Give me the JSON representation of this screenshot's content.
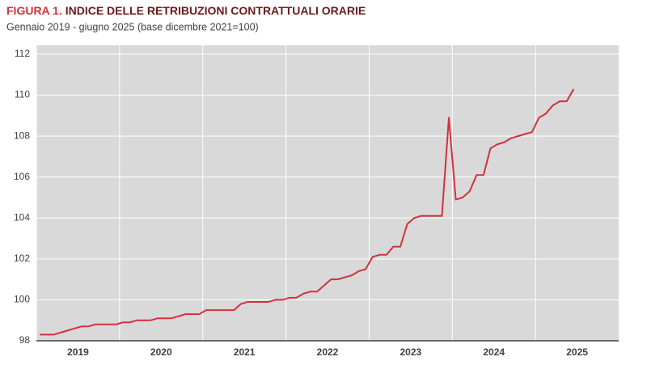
{
  "chart_data": {
    "type": "line",
    "figure_label": "FIGURA 1.",
    "title": "INDICE DELLE RETRIBUZIONI CONTRATTUALI ORARIE",
    "subtitle": "Gennaio 2019 - giugno 2025 (base dicembre 2021=100)",
    "x": [
      "2019",
      null,
      null,
      null,
      null,
      null,
      null,
      null,
      null,
      null,
      null,
      null,
      "2020",
      null,
      null,
      null,
      null,
      null,
      null,
      null,
      null,
      null,
      null,
      null,
      "2021",
      null,
      null,
      null,
      null,
      null,
      null,
      null,
      null,
      null,
      null,
      null,
      "2022",
      null,
      null,
      null,
      null,
      null,
      null,
      null,
      null,
      null,
      null,
      null,
      "2023",
      null,
      null,
      null,
      null,
      null,
      null,
      null,
      null,
      null,
      null,
      null,
      "2024",
      null,
      null,
      null,
      null,
      null,
      null,
      null,
      null,
      null,
      null,
      null,
      "2025",
      null,
      null,
      null,
      null,
      null
    ],
    "values": [
      98.3,
      98.3,
      98.3,
      98.4,
      98.5,
      98.6,
      98.7,
      98.7,
      98.8,
      98.8,
      98.8,
      98.8,
      98.9,
      98.9,
      99.0,
      99.0,
      99.0,
      99.1,
      99.1,
      99.1,
      99.2,
      99.3,
      99.3,
      99.3,
      99.5,
      99.5,
      99.5,
      99.5,
      99.5,
      99.8,
      99.9,
      99.9,
      99.9,
      99.9,
      100.0,
      100.0,
      100.1,
      100.1,
      100.3,
      100.4,
      100.4,
      100.7,
      101.0,
      101.0,
      101.1,
      101.2,
      101.4,
      101.5,
      102.1,
      102.2,
      102.2,
      102.6,
      102.6,
      103.7,
      104.0,
      104.1,
      104.1,
      104.1,
      104.1,
      108.9,
      104.9,
      105.0,
      105.3,
      106.1,
      106.1,
      107.4,
      107.6,
      107.7,
      107.9,
      108.0,
      108.1,
      108.2,
      108.9,
      109.1,
      109.5,
      109.7,
      109.7,
      110.3
    ],
    "color": "#d2323c",
    "ylim": [
      98,
      112
    ],
    "yticks": [
      98,
      100,
      102,
      104,
      106,
      108,
      110,
      112
    ],
    "grid": true
  }
}
